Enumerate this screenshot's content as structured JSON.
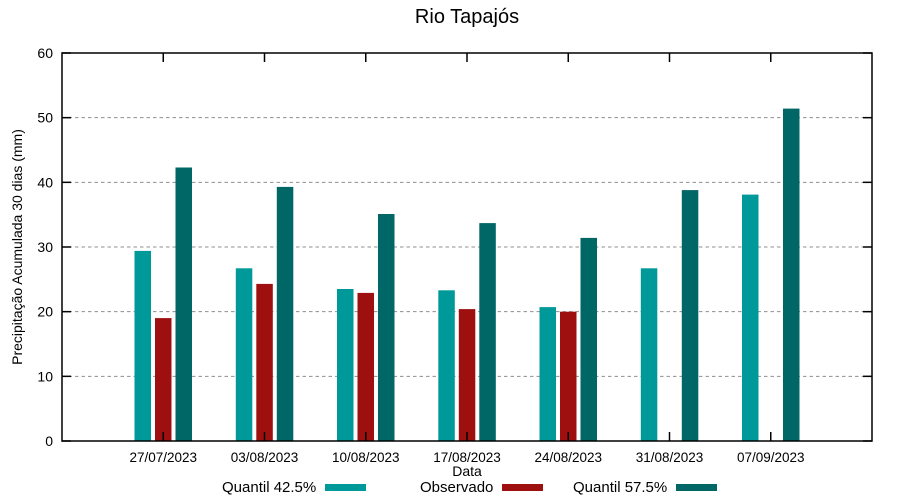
{
  "chart_data": {
    "type": "bar",
    "title": "Rio Tapajós",
    "xlabel": "Data",
    "ylabel": "Precipitação Acumulada 30 dias (mm)",
    "ylim": [
      0,
      60
    ],
    "yticks": [
      0,
      10,
      20,
      30,
      40,
      50,
      60
    ],
    "grid": true,
    "grid_style": "dashed-gray",
    "legend_position": "bottom",
    "frame_color": "#000000",
    "background_color": "#ffffff",
    "categories": [
      "27/07/2023",
      "03/08/2023",
      "10/08/2023",
      "17/08/2023",
      "24/08/2023",
      "31/08/2023",
      "07/09/2023"
    ],
    "series": [
      {
        "name": "Quantil 42.5%",
        "color": "#009999",
        "values": [
          29.4,
          26.7,
          23.5,
          23.3,
          20.7,
          26.7,
          38.1
        ]
      },
      {
        "name": "Observado",
        "color": "#9e1010",
        "values": [
          19.0,
          24.3,
          22.9,
          20.4,
          20.0,
          null,
          null
        ]
      },
      {
        "name": "Quantil 57.5%",
        "color": "#006666",
        "values": [
          42.3,
          39.3,
          35.1,
          33.7,
          31.4,
          38.8,
          51.4
        ]
      }
    ]
  }
}
